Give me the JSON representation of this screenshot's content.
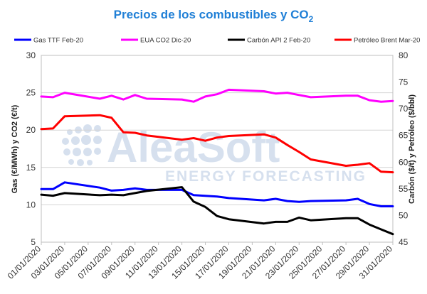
{
  "chart_data": {
    "type": "line",
    "title": "Precios de los combustibles y CO",
    "title_subscript": "2",
    "ylabel_left": "Gas (€/MWh) y CO2 (€/t)",
    "ylabel_right": "Carbón ($/t) y Petróleo ($/bbl)",
    "ylim_left": [
      5,
      30
    ],
    "yticks_left": [
      "5",
      "10",
      "15",
      "20",
      "25",
      "30"
    ],
    "ylim_right": [
      45,
      80
    ],
    "yticks_right": [
      "45",
      "50",
      "55",
      "60",
      "65",
      "70",
      "75",
      "80"
    ],
    "grid": true,
    "legend_position": "top",
    "x": [
      "01/01/2020",
      "02/01/2020",
      "03/01/2020",
      "06/01/2020",
      "07/01/2020",
      "08/01/2020",
      "09/01/2020",
      "10/01/2020",
      "13/01/2020",
      "14/01/2020",
      "15/01/2020",
      "16/01/2020",
      "17/01/2020",
      "20/01/2020",
      "21/01/2020",
      "22/01/2020",
      "23/01/2020",
      "24/01/2020",
      "27/01/2020",
      "28/01/2020",
      "29/01/2020",
      "30/01/2020",
      "31/01/2020"
    ],
    "xtick_labels": [
      "01/01/2020",
      "03/01/2020",
      "05/01/2020",
      "07/01/2020",
      "09/01/2020",
      "11/01/2020",
      "13/01/2020",
      "15/01/2020",
      "17/01/2020",
      "19/01/2020",
      "21/01/2020",
      "23/01/2020",
      "25/01/2020",
      "27/01/2020",
      "29/01/2020",
      "31/01/2020"
    ],
    "series": [
      {
        "name": "Gas TTF Feb-20",
        "axis": "left",
        "color": "#0000ff",
        "x": [
          "01/01/2020",
          "02/01/2020",
          "03/01/2020",
          "06/01/2020",
          "07/01/2020",
          "08/01/2020",
          "09/01/2020",
          "10/01/2020",
          "13/01/2020",
          "14/01/2020",
          "15/01/2020",
          "16/01/2020",
          "17/01/2020",
          "20/01/2020",
          "21/01/2020",
          "22/01/2020",
          "23/01/2020",
          "24/01/2020",
          "27/01/2020",
          "28/01/2020",
          "29/01/2020",
          "30/01/2020",
          "31/01/2020"
        ],
        "values": [
          12.1,
          12.1,
          13.0,
          12.3,
          11.9,
          12.0,
          12.2,
          12.0,
          12.0,
          11.3,
          11.2,
          11.1,
          10.9,
          10.6,
          10.8,
          10.5,
          10.4,
          10.5,
          10.6,
          10.8,
          10.1,
          9.8,
          9.8
        ]
      },
      {
        "name": "EUA CO2 Dic-20",
        "axis": "left",
        "color": "#ff00ff",
        "x": [
          "01/01/2020",
          "02/01/2020",
          "03/01/2020",
          "06/01/2020",
          "07/01/2020",
          "08/01/2020",
          "09/01/2020",
          "10/01/2020",
          "13/01/2020",
          "14/01/2020",
          "15/01/2020",
          "16/01/2020",
          "17/01/2020",
          "20/01/2020",
          "21/01/2020",
          "22/01/2020",
          "23/01/2020",
          "24/01/2020",
          "27/01/2020",
          "28/01/2020",
          "29/01/2020",
          "30/01/2020",
          "31/01/2020"
        ],
        "values": [
          24.5,
          24.4,
          25.0,
          24.2,
          24.6,
          24.1,
          24.7,
          24.2,
          24.1,
          23.8,
          24.5,
          24.8,
          25.4,
          25.2,
          24.9,
          25.0,
          24.7,
          24.4,
          24.6,
          24.6,
          24.0,
          23.8,
          23.9
        ]
      },
      {
        "name": "Carbón API 2 Feb-20",
        "axis": "right",
        "color": "#000000",
        "x": [
          "01/01/2020",
          "02/01/2020",
          "03/01/2020",
          "06/01/2020",
          "07/01/2020",
          "08/01/2020",
          "09/01/2020",
          "10/01/2020",
          "13/01/2020",
          "14/01/2020",
          "15/01/2020",
          "16/01/2020",
          "17/01/2020",
          "20/01/2020",
          "21/01/2020",
          "22/01/2020",
          "23/01/2020",
          "24/01/2020",
          "27/01/2020",
          "28/01/2020",
          "29/01/2020",
          "30/01/2020",
          "31/01/2020"
        ],
        "values": [
          53.9,
          53.7,
          54.2,
          53.8,
          53.9,
          53.8,
          54.2,
          54.6,
          55.3,
          52.6,
          51.6,
          49.9,
          49.3,
          48.5,
          48.8,
          48.8,
          49.6,
          49.1,
          49.5,
          49.5,
          48.3,
          47.4,
          46.5
        ]
      },
      {
        "name": "Petróleo Brent Mar-20",
        "axis": "right",
        "color": "#ff0000",
        "x": [
          "01/01/2020",
          "02/01/2020",
          "03/01/2020",
          "06/01/2020",
          "07/01/2020",
          "08/01/2020",
          "09/01/2020",
          "10/01/2020",
          "13/01/2020",
          "14/01/2020",
          "15/01/2020",
          "16/01/2020",
          "17/01/2020",
          "20/01/2020",
          "21/01/2020",
          "22/01/2020",
          "23/01/2020",
          "24/01/2020",
          "27/01/2020",
          "28/01/2020",
          "29/01/2020",
          "30/01/2020",
          "31/01/2020"
        ],
        "values": [
          66.2,
          66.3,
          68.6,
          68.8,
          68.3,
          65.6,
          65.5,
          65.0,
          64.2,
          64.5,
          64.0,
          64.6,
          64.9,
          65.2,
          64.6,
          63.2,
          61.9,
          60.5,
          59.3,
          59.5,
          59.8,
          58.2,
          58.1
        ]
      }
    ]
  },
  "watermark": {
    "brand": "AleaSoft",
    "tagline": "ENERGY FORECASTING"
  }
}
